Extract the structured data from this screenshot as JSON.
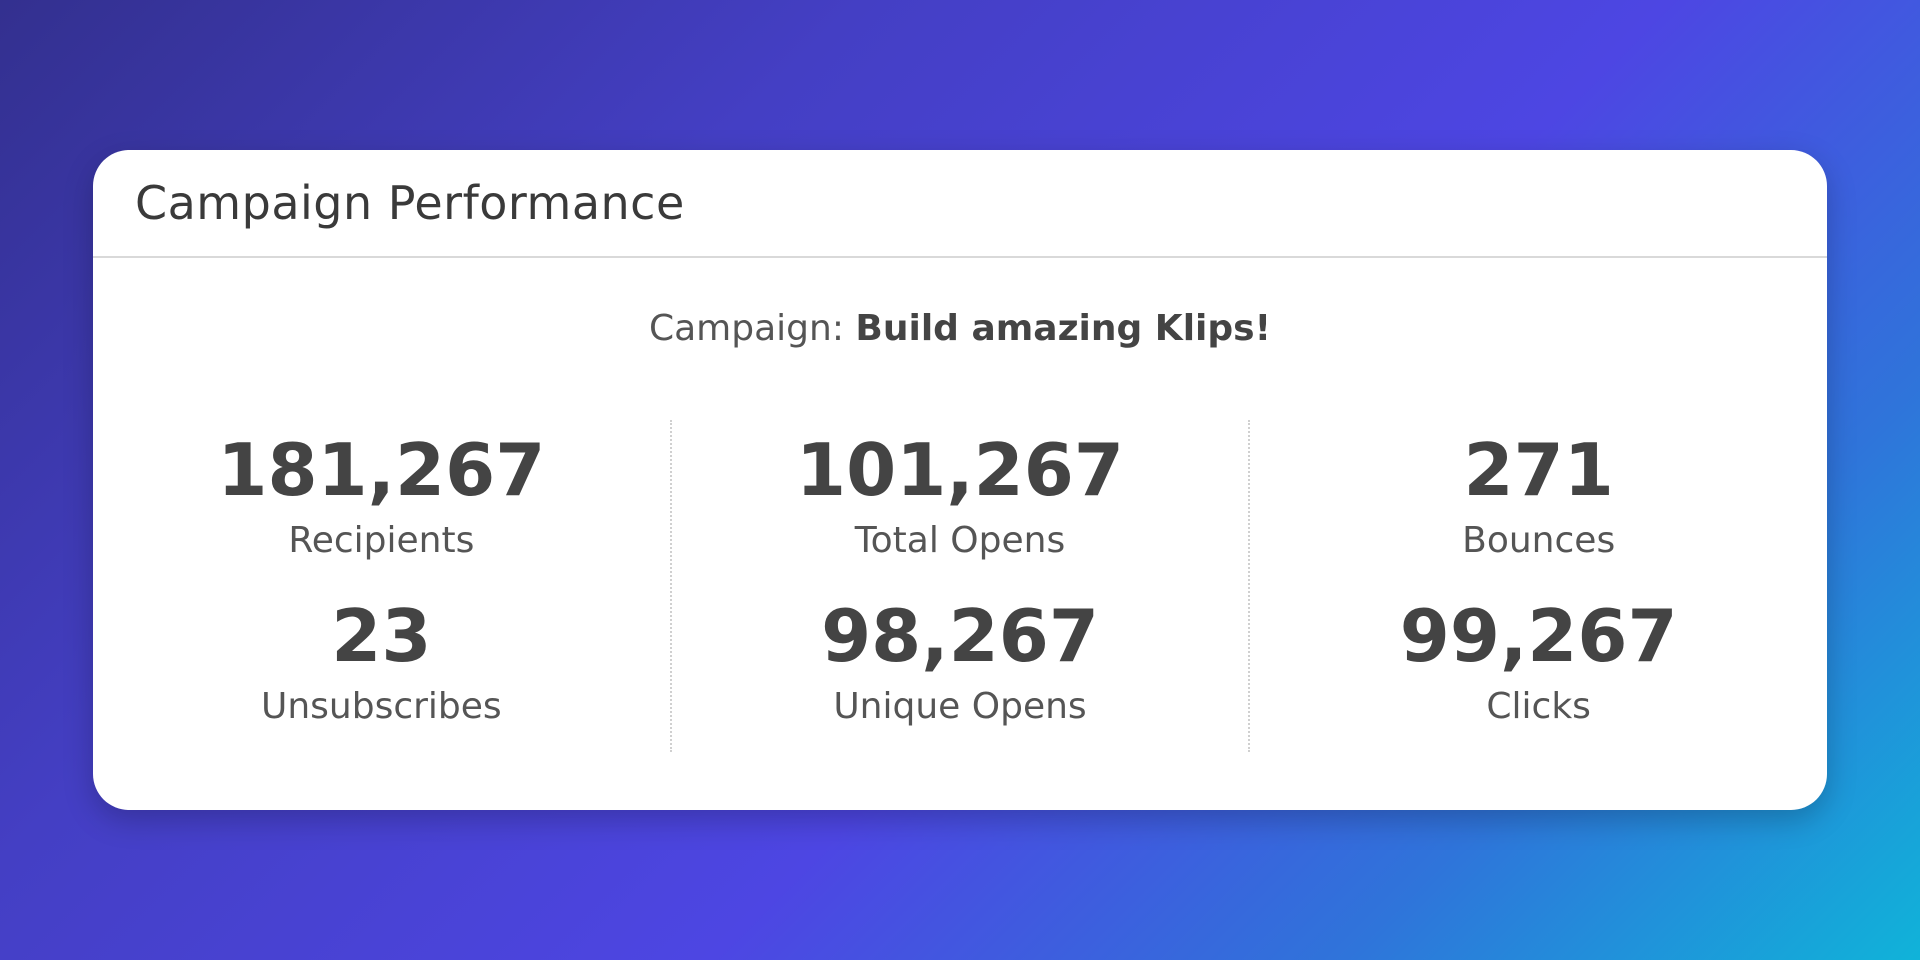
{
  "widget": {
    "title": "Campaign Performance",
    "campaign_prefix": "Campaign:",
    "campaign_name": "Build amazing Klips!"
  },
  "stats": {
    "recipients": {
      "value": "181,267",
      "label": "Recipients"
    },
    "unsubscribes": {
      "value": "23",
      "label": "Unsubscribes"
    },
    "total_opens": {
      "value": "101,267",
      "label": "Total Opens"
    },
    "unique_opens": {
      "value": "98,267",
      "label": "Unique Opens"
    },
    "bounces": {
      "value": "271",
      "label": "Bounces"
    },
    "clicks": {
      "value": "99,267",
      "label": "Clicks"
    }
  },
  "colors": {
    "background_start": "#33308f",
    "background_mid": "#4d46e3",
    "background_end": "#10b3d9",
    "card": "#ffffff",
    "text": "#444444"
  }
}
